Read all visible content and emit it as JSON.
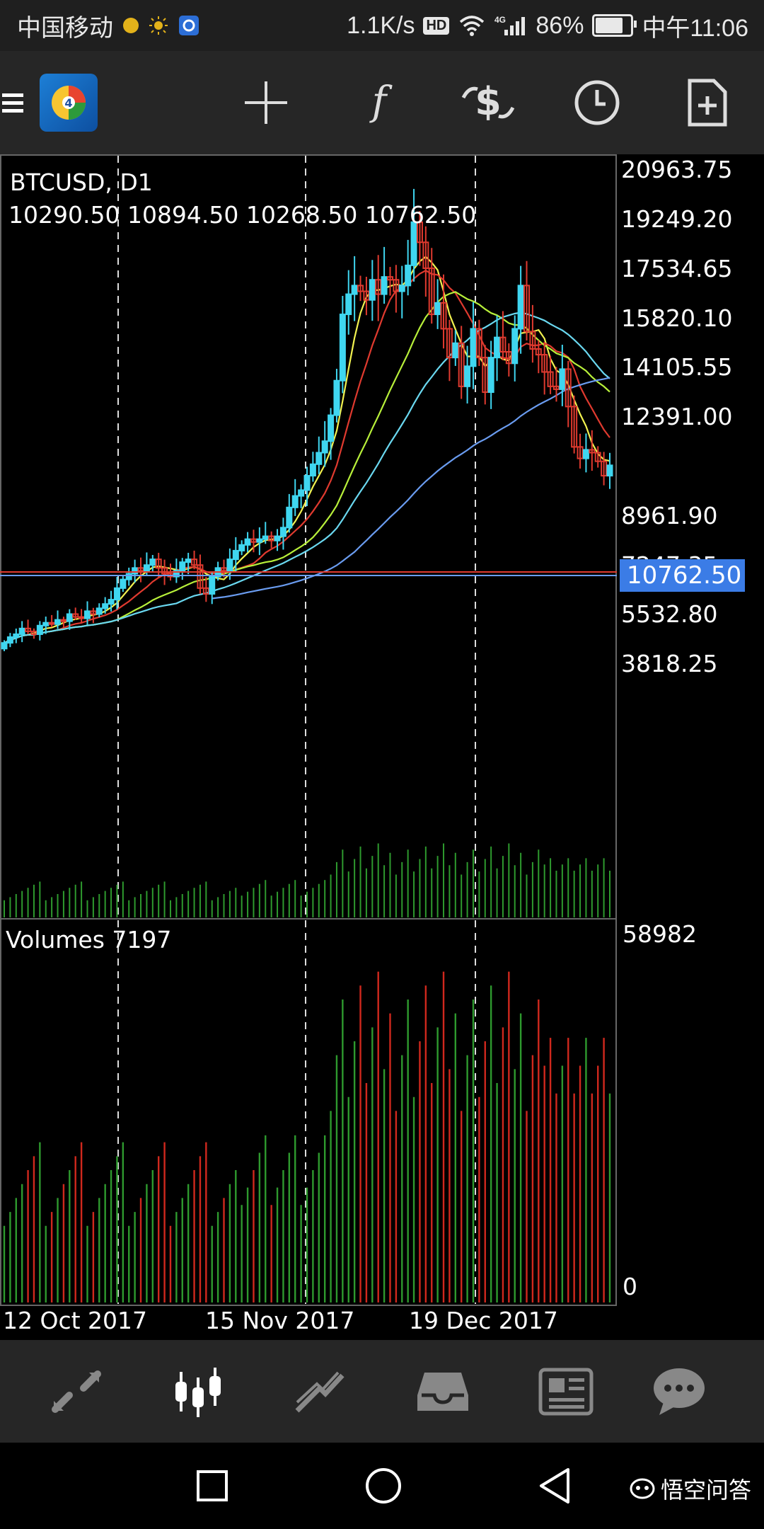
{
  "status_bar": {
    "carrier": "中国移动",
    "net_speed": "1.1K/s",
    "hd": "HD",
    "signal": "4G",
    "battery": "86%",
    "time": "中午11:06"
  },
  "toolbar": {
    "icons": [
      "menu-icon",
      "metatrader-logo",
      "crosshair-icon",
      "function-icon",
      "trade-icon",
      "timeframe-icon",
      "new-document-icon"
    ]
  },
  "chart": {
    "symbol": "BTCUSD, D1",
    "ohlc": "10290.50 10894.50 10268.50 10762.50",
    "current_price": "10762.50",
    "price_axis": [
      "20963.75",
      "19249.20",
      "17534.65",
      "15820.10",
      "14105.55",
      "12391.00",
      "8961.90",
      "7247.35",
      "5532.80",
      "3818.25"
    ],
    "volume_label": "Volumes 7197",
    "volume_axis_top": "58982",
    "volume_axis_bottom": "0",
    "date_axis": [
      "12 Oct 2017",
      "15 Nov 2017",
      "19 Dec 2017"
    ]
  },
  "chart_data": {
    "type": "candlestick",
    "title": "BTCUSD, D1",
    "ylim": [
      3818.25,
      20963.75
    ],
    "x_labels": [
      "12 Oct 2017",
      "15 Nov 2017",
      "19 Dec 2017"
    ],
    "last_close": 10762.5,
    "volume_max": 58982
  },
  "bottom_nav": {
    "items": [
      "quotes-icon",
      "chart-icon",
      "trade-icon",
      "history-icon",
      "news-icon",
      "chat-icon"
    ]
  },
  "system_nav": [
    "recent-apps-button",
    "home-button",
    "back-button"
  ],
  "watermark": "悟空问答",
  "colors": {
    "bull": "#3fd6f0",
    "bear": "#e03a2f",
    "vol_up": "#2e9a2e",
    "vol_down": "#d0281d",
    "price_line": "#e03a2f",
    "price_tag": "#3b7ce6"
  }
}
